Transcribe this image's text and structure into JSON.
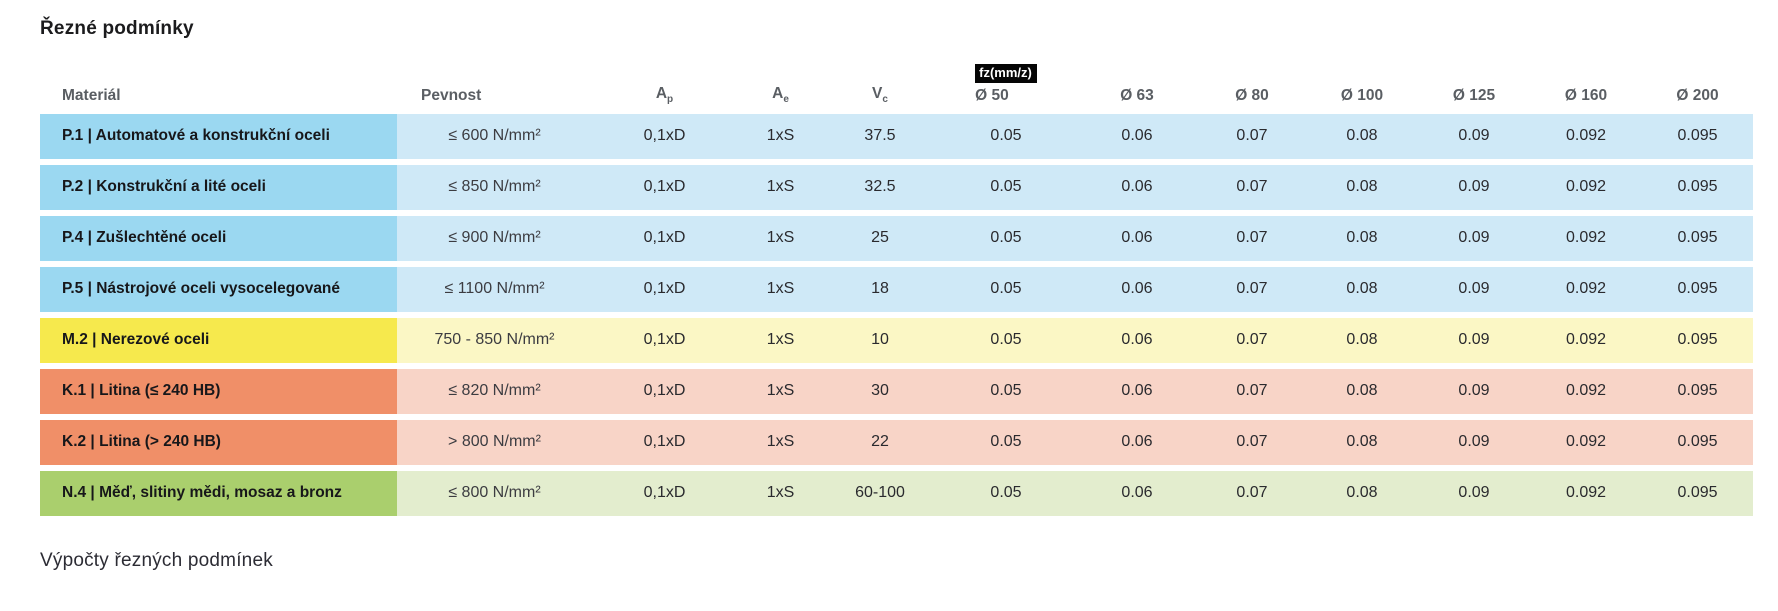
{
  "page": {
    "title": "Řezné podmínky",
    "footer_heading": "Výpočty řezných podmínek"
  },
  "table": {
    "headers": {
      "material": "Materiál",
      "pevnost": "Pevnost",
      "ap": {
        "main": "A",
        "sub": "p"
      },
      "ae": {
        "main": "A",
        "sub": "e"
      },
      "vc": {
        "main": "V",
        "sub": "c"
      },
      "fz_badge": "fz(mm/z)",
      "diameters": [
        "Ø 50",
        "Ø 63",
        "Ø 80",
        "Ø 100",
        "Ø 125",
        "Ø 160",
        "Ø 200"
      ]
    },
    "rows": [
      {
        "group": "steel",
        "material": "P.1 | Automatové a konstrukční oceli",
        "pevnost": "≤ 600 N/mm²",
        "ap": "0,1xD",
        "ae": "1xS",
        "vc": "37.5",
        "fz": [
          "0.05",
          "0.06",
          "0.07",
          "0.08",
          "0.09",
          "0.092",
          "0.095"
        ]
      },
      {
        "group": "steel",
        "material": "P.2 | Konstrukční a lité oceli",
        "pevnost": "≤ 850 N/mm²",
        "ap": "0,1xD",
        "ae": "1xS",
        "vc": "32.5",
        "fz": [
          "0.05",
          "0.06",
          "0.07",
          "0.08",
          "0.09",
          "0.092",
          "0.095"
        ]
      },
      {
        "group": "steel",
        "material": "P.4 | Zušlechtěné oceli",
        "pevnost": "≤ 900 N/mm²",
        "ap": "0,1xD",
        "ae": "1xS",
        "vc": "25",
        "fz": [
          "0.05",
          "0.06",
          "0.07",
          "0.08",
          "0.09",
          "0.092",
          "0.095"
        ]
      },
      {
        "group": "steel",
        "material": "P.5 | Nástrojové oceli vysocelegované",
        "pevnost": "≤ 1100 N/mm²",
        "ap": "0,1xD",
        "ae": "1xS",
        "vc": "18",
        "fz": [
          "0.05",
          "0.06",
          "0.07",
          "0.08",
          "0.09",
          "0.092",
          "0.095"
        ]
      },
      {
        "group": "stainless",
        "material": "M.2 | Nerezové oceli",
        "pevnost": "750 - 850 N/mm²",
        "ap": "0,1xD",
        "ae": "1xS",
        "vc": "10",
        "fz": [
          "0.05",
          "0.06",
          "0.07",
          "0.08",
          "0.09",
          "0.092",
          "0.095"
        ]
      },
      {
        "group": "cast_iron",
        "material": "K.1 | Litina (≤ 240 HB)",
        "pevnost": "≤ 820 N/mm²",
        "ap": "0,1xD",
        "ae": "1xS",
        "vc": "30",
        "fz": [
          "0.05",
          "0.06",
          "0.07",
          "0.08",
          "0.09",
          "0.092",
          "0.095"
        ]
      },
      {
        "group": "cast_iron",
        "material": "K.2 | Litina (> 240 HB)",
        "pevnost": "> 800 N/mm²",
        "ap": "0,1xD",
        "ae": "1xS",
        "vc": "22",
        "fz": [
          "0.05",
          "0.06",
          "0.07",
          "0.08",
          "0.09",
          "0.092",
          "0.095"
        ]
      },
      {
        "group": "non_ferrous",
        "material": "N.4 | Měď, slitiny mědi, mosaz a bronz",
        "pevnost": "≤ 800 N/mm²",
        "ap": "0,1xD",
        "ae": "1xS",
        "vc": "60-100",
        "fz": [
          "0.05",
          "0.06",
          "0.07",
          "0.08",
          "0.09",
          "0.092",
          "0.095"
        ]
      }
    ]
  },
  "palette": {
    "steel": {
      "head": "#9bd8f1",
      "body": "#cfe9f7"
    },
    "stainless": {
      "head": "#f6e94d",
      "body": "#fbf7c5"
    },
    "cast_iron": {
      "head": "#f08f68",
      "body": "#f8d4c7"
    },
    "non_ferrous": {
      "head": "#aacf6d",
      "body": "#e3edce"
    },
    "badge_bg": "#050505",
    "badge_text": "#ffffff"
  }
}
